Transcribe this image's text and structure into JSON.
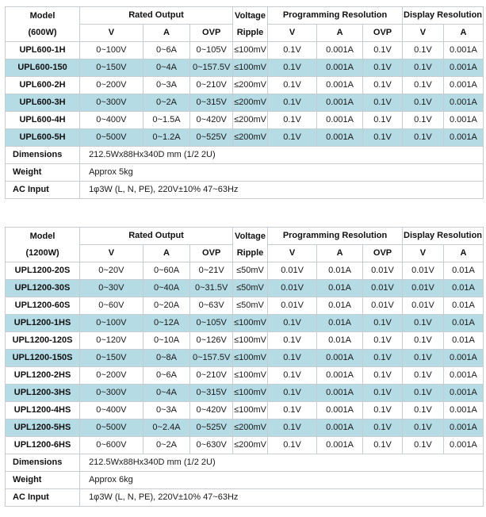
{
  "colors": {
    "highlight_row": "#b5dbe5",
    "border": "#c7ccd0",
    "text": "#1a1a1a",
    "background": "#ffffff"
  },
  "tables": [
    {
      "header": {
        "model_line1": "Model",
        "model_line2": "(600W)",
        "rated_output": "Rated Output",
        "ripple_line1": "Voltage",
        "ripple_line2": "Ripple",
        "programming_resolution": "Programming Resolution",
        "display_resolution": "Display Resolution",
        "sub": [
          "V",
          "A",
          "OVP",
          "V",
          "A",
          "OVP",
          "V",
          "A"
        ]
      },
      "rows": [
        {
          "model": "UPL600-1H",
          "v": "0~100V",
          "a": "0~6A",
          "ovp": "0~105V",
          "ripple": "≤100mV",
          "pr_v": "0.1V",
          "pr_a": "0.001A",
          "pr_ovp": "0.1V",
          "dr_v": "0.1V",
          "dr_a": "0.001A",
          "hl": false
        },
        {
          "model": "UPL600-150",
          "v": "0~150V",
          "a": "0~4A",
          "ovp": "0~157.5V",
          "ripple": "≤100mV",
          "pr_v": "0.1V",
          "pr_a": "0.001A",
          "pr_ovp": "0.1V",
          "dr_v": "0.1V",
          "dr_a": "0.001A",
          "hl": true
        },
        {
          "model": "UPL600-2H",
          "v": "0~200V",
          "a": "0~3A",
          "ovp": "0~210V",
          "ripple": "≤200mV",
          "pr_v": "0.1V",
          "pr_a": "0.001A",
          "pr_ovp": "0.1V",
          "dr_v": "0.1V",
          "dr_a": "0.001A",
          "hl": false
        },
        {
          "model": "UPL600-3H",
          "v": "0~300V",
          "a": "0~2A",
          "ovp": "0~315V",
          "ripple": "≤200mV",
          "pr_v": "0.1V",
          "pr_a": "0.001A",
          "pr_ovp": "0.1V",
          "dr_v": "0.1V",
          "dr_a": "0.001A",
          "hl": true
        },
        {
          "model": "UPL600-4H",
          "v": "0~400V",
          "a": "0~1.5A",
          "ovp": "0~420V",
          "ripple": "≤200mV",
          "pr_v": "0.1V",
          "pr_a": "0.001A",
          "pr_ovp": "0.1V",
          "dr_v": "0.1V",
          "dr_a": "0.001A",
          "hl": false
        },
        {
          "model": "UPL600-5H",
          "v": "0~500V",
          "a": "0~1.2A",
          "ovp": "0~525V",
          "ripple": "≤200mV",
          "pr_v": "0.1V",
          "pr_a": "0.001A",
          "pr_ovp": "0.1V",
          "dr_v": "0.1V",
          "dr_a": "0.001A",
          "hl": true
        }
      ],
      "info_rows": [
        {
          "label": "Dimensions",
          "value": "212.5Wx88Hx340D mm (1/2 2U)"
        },
        {
          "label": "Weight",
          "value": "Approx 5kg"
        },
        {
          "label": "AC Input",
          "value": "1φ3W (L, N, PE), 220V±10% 47~63Hz"
        }
      ]
    },
    {
      "header": {
        "model_line1": "Model",
        "model_line2": "(1200W)",
        "rated_output": "Rated Output",
        "ripple_line1": "Voltage",
        "ripple_line2": "Ripple",
        "programming_resolution": "Programming Resolution",
        "display_resolution": "Display Resolution",
        "sub": [
          "V",
          "A",
          "OVP",
          "V",
          "A",
          "OVP",
          "V",
          "A"
        ]
      },
      "rows": [
        {
          "model": "UPL1200-20S",
          "v": "0~20V",
          "a": "0~60A",
          "ovp": "0~21V",
          "ripple": "≤50mV",
          "pr_v": "0.01V",
          "pr_a": "0.01A",
          "pr_ovp": "0.01V",
          "dr_v": "0.01V",
          "dr_a": "0.01A",
          "hl": false
        },
        {
          "model": "UPL1200-30S",
          "v": "0~30V",
          "a": "0~40A",
          "ovp": "0~31.5V",
          "ripple": "≤50mV",
          "pr_v": "0.01V",
          "pr_a": "0.01A",
          "pr_ovp": "0.01V",
          "dr_v": "0.01V",
          "dr_a": "0.01A",
          "hl": true
        },
        {
          "model": "UPL1200-60S",
          "v": "0~60V",
          "a": "0~20A",
          "ovp": "0~63V",
          "ripple": "≤50mV",
          "pr_v": "0.01V",
          "pr_a": "0.01A",
          "pr_ovp": "0.01V",
          "dr_v": "0.01V",
          "dr_a": "0.01A",
          "hl": false
        },
        {
          "model": "UPL1200-1HS",
          "v": "0~100V",
          "a": "0~12A",
          "ovp": "0~105V",
          "ripple": "≤100mV",
          "pr_v": "0.1V",
          "pr_a": "0.01A",
          "pr_ovp": "0.1V",
          "dr_v": "0.1V",
          "dr_a": "0.01A",
          "hl": true
        },
        {
          "model": "UPL1200-120S",
          "v": "0~120V",
          "a": "0~10A",
          "ovp": "0~126V",
          "ripple": "≤100mV",
          "pr_v": "0.1V",
          "pr_a": "0.01A",
          "pr_ovp": "0.1V",
          "dr_v": "0.1V",
          "dr_a": "0.01A",
          "hl": false
        },
        {
          "model": "UPL1200-150S",
          "v": "0~150V",
          "a": "0~8A",
          "ovp": "0~157.5V",
          "ripple": "≤100mV",
          "pr_v": "0.1V",
          "pr_a": "0.001A",
          "pr_ovp": "0.1V",
          "dr_v": "0.1V",
          "dr_a": "0.001A",
          "hl": true
        },
        {
          "model": "UPL1200-2HS",
          "v": "0~200V",
          "a": "0~6A",
          "ovp": "0~210V",
          "ripple": "≤100mV",
          "pr_v": "0.1V",
          "pr_a": "0.001A",
          "pr_ovp": "0.1V",
          "dr_v": "0.1V",
          "dr_a": "0.001A",
          "hl": false
        },
        {
          "model": "UPL1200-3HS",
          "v": "0~300V",
          "a": "0~4A",
          "ovp": "0~315V",
          "ripple": "≤100mV",
          "pr_v": "0.1V",
          "pr_a": "0.001A",
          "pr_ovp": "0.1V",
          "dr_v": "0.1V",
          "dr_a": "0.001A",
          "hl": true
        },
        {
          "model": "UPL1200-4HS",
          "v": "0~400V",
          "a": "0~3A",
          "ovp": "0~420V",
          "ripple": "≤100mV",
          "pr_v": "0.1V",
          "pr_a": "0.001A",
          "pr_ovp": "0.1V",
          "dr_v": "0.1V",
          "dr_a": "0.001A",
          "hl": false
        },
        {
          "model": "UPL1200-5HS",
          "v": "0~500V",
          "a": "0~2.4A",
          "ovp": "0~525V",
          "ripple": "≤200mV",
          "pr_v": "0.1V",
          "pr_a": "0.001A",
          "pr_ovp": "0.1V",
          "dr_v": "0.1V",
          "dr_a": "0.001A",
          "hl": true
        },
        {
          "model": "UPL1200-6HS",
          "v": "0~600V",
          "a": "0~2A",
          "ovp": "0~630V",
          "ripple": "≤200mV",
          "pr_v": "0.1V",
          "pr_a": "0.001A",
          "pr_ovp": "0.1V",
          "dr_v": "0.1V",
          "dr_a": "0.001A",
          "hl": false
        }
      ],
      "info_rows": [
        {
          "label": "Dimensions",
          "value": "212.5Wx88Hx340D mm (1/2 2U)"
        },
        {
          "label": "Weight",
          "value": "Approx 6kg"
        },
        {
          "label": "AC Input",
          "value": "1φ3W (L, N, PE), 220V±10% 47~63Hz"
        }
      ]
    }
  ]
}
